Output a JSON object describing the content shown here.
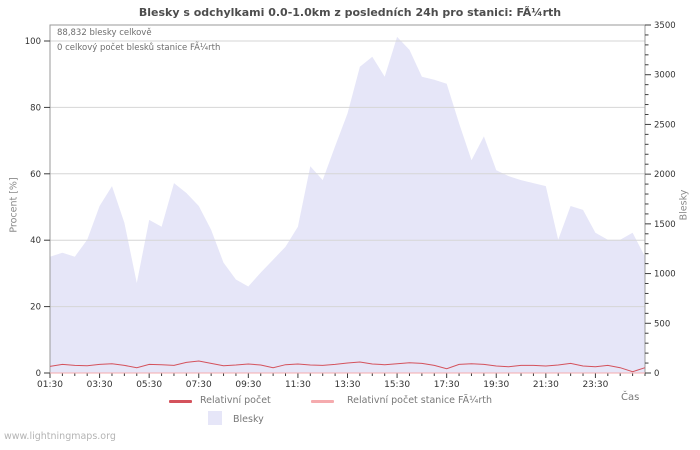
{
  "watermark": "www.lightningmaps.org",
  "chart": {
    "title": "Blesky s odchylkami 0.0-1.0km z posledních 24h pro stanici: FÃ¼rth",
    "stats_line1": "88,832 blesky celkově",
    "stats_line2": "0 celkový počet blesků stanice FÃ¼rth",
    "y_left_label": "Procent  [%]",
    "y_right_label": "Blesky",
    "x_label": "Čas",
    "legend": [
      {
        "label": "Relativní počet",
        "swatch": "line",
        "color": "#d4525c"
      },
      {
        "label": "Relativní počet stanice FÃ¼rth",
        "swatch": "line",
        "color": "#f5abae"
      },
      {
        "label": "Blesky",
        "swatch": "area",
        "color": "#e6e6f8"
      }
    ],
    "colors": {
      "area": "#e6e6f8",
      "line_total": "#d4525c",
      "line_station": "#f5abae",
      "grid": "#d6d6d6",
      "frame": "#9a9a9a",
      "tick": "#3c3c3c",
      "tick_label": "#333333",
      "muted_text": "#8a8a8a"
    }
  },
  "chart_data": {
    "type": "area",
    "title": "Blesky s odchylkami 0.0-1.0km z posledních 24h pro stanici: FÃ¼rth",
    "grid": "horizontal",
    "legend_position": "bottom",
    "totals": {
      "blesky_celkove": "88,832",
      "blesky_stanice": "0"
    },
    "x": [
      "01:30",
      "02:00",
      "02:30",
      "03:00",
      "03:30",
      "04:00",
      "04:30",
      "05:00",
      "05:30",
      "06:00",
      "06:30",
      "07:00",
      "07:30",
      "08:00",
      "08:30",
      "09:00",
      "09:30",
      "10:00",
      "10:30",
      "11:00",
      "11:30",
      "12:00",
      "12:30",
      "13:00",
      "13:30",
      "14:00",
      "14:30",
      "15:00",
      "15:30",
      "16:00",
      "16:30",
      "17:00",
      "17:30",
      "18:00",
      "18:30",
      "19:00",
      "19:30",
      "20:00",
      "20:30",
      "21:00",
      "21:30",
      "22:00",
      "22:30",
      "23:00",
      "23:30",
      "00:00",
      "00:30",
      "01:00",
      "01:30"
    ],
    "x_tick_labels": [
      "01:30",
      "03:30",
      "05:30",
      "07:30",
      "09:30",
      "11:30",
      "13:30",
      "15:30",
      "17:30",
      "19:30",
      "21:30",
      "23:30"
    ],
    "y_left": {
      "label": "Procent [%]",
      "min": 0,
      "max": 100,
      "ticks": [
        0,
        20,
        40,
        60,
        80,
        100
      ]
    },
    "y_right": {
      "label": "Blesky",
      "min": 0,
      "max": 3500,
      "ticks": [
        0,
        500,
        1000,
        1500,
        2000,
        2500,
        3000,
        3500
      ],
      "minor_step": 100
    },
    "series": [
      {
        "name": "Blesky",
        "kind": "area",
        "axis": "right",
        "color": "#e6e6f8",
        "values": [
          1170,
          1210,
          1170,
          1340,
          1680,
          1880,
          1510,
          905,
          1540,
          1470,
          1910,
          1810,
          1680,
          1440,
          1110,
          940,
          870,
          1010,
          1140,
          1270,
          1470,
          2080,
          1940,
          2280,
          2610,
          3080,
          3180,
          2980,
          3380,
          3250,
          2980,
          2950,
          2910,
          2510,
          2140,
          2380,
          2040,
          1980,
          1940,
          1910,
          1880,
          1340,
          1680,
          1640,
          1410,
          1340,
          1340,
          1410,
          1170
        ]
      },
      {
        "name": "Relativní počet",
        "kind": "line",
        "axis": "left",
        "color": "#d4525c",
        "values": [
          2.0,
          2.6,
          2.3,
          2.2,
          2.6,
          2.8,
          2.3,
          1.6,
          2.6,
          2.5,
          2.3,
          3.2,
          3.6,
          2.9,
          2.2,
          2.4,
          2.7,
          2.4,
          1.6,
          2.5,
          2.7,
          2.4,
          2.3,
          2.6,
          3.0,
          3.3,
          2.7,
          2.5,
          2.8,
          3.1,
          2.9,
          2.3,
          1.3,
          2.6,
          2.8,
          2.6,
          2.1,
          1.9,
          2.3,
          2.3,
          2.1,
          2.4,
          2.9,
          2.1,
          1.9,
          2.3,
          1.6,
          0.4,
          1.6
        ]
      },
      {
        "name": "Relativní počet stanice FÃ¼rth",
        "kind": "line",
        "axis": "left",
        "color": "#f5abae",
        "values": [
          0,
          0,
          0,
          0,
          0,
          0,
          0,
          0,
          0,
          0,
          0,
          0,
          0,
          0,
          0,
          0,
          0,
          0,
          0,
          0,
          0,
          0,
          0,
          0,
          0,
          0,
          0,
          0,
          0,
          0,
          0,
          0,
          0,
          0,
          0,
          0,
          0,
          0,
          0,
          0,
          0,
          0,
          0,
          0,
          0,
          0,
          0,
          0,
          0
        ]
      }
    ]
  }
}
